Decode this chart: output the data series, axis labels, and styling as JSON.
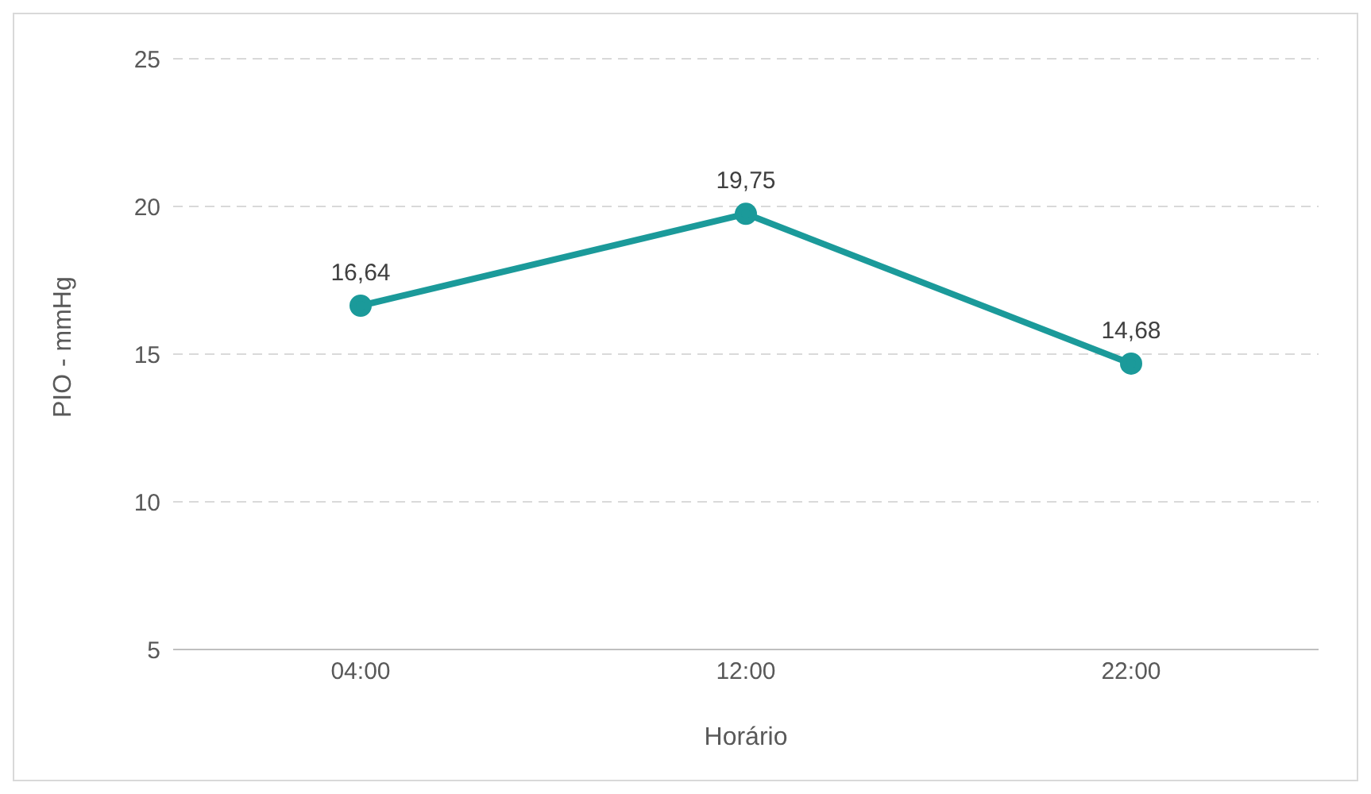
{
  "chart_data": {
    "type": "line",
    "xlabel": "Horário",
    "ylabel": "PIO - mmHg",
    "categories": [
      "04:00",
      "12:00",
      "22:00"
    ],
    "series": [
      {
        "color": "#1b9a9a",
        "values": [
          16.64,
          19.75,
          14.68
        ],
        "value_labels": [
          "16,64",
          "19,75",
          "14,68"
        ]
      }
    ],
    "ylim": [
      5,
      25
    ],
    "yticks": [
      5,
      10,
      15,
      20,
      25
    ],
    "grid": "y",
    "marker": "circle",
    "line_style": "solid",
    "legend": false
  }
}
